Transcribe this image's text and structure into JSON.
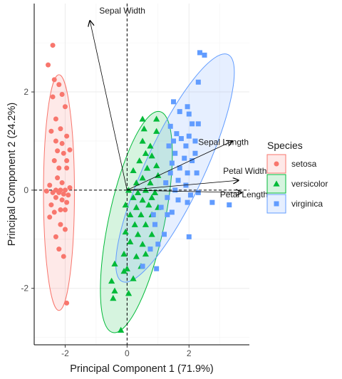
{
  "chart_data": {
    "type": "scatter",
    "xlabel": "Principal Component 1 (71.9%)",
    "ylabel": "Principal Component 2 (24.2%)",
    "xlim": [
      -3.0,
      3.95
    ],
    "ylim": [
      -3.15,
      3.8
    ],
    "xticks": [
      -2,
      0,
      2
    ],
    "yticks": [
      -2,
      0,
      2
    ],
    "grid": true,
    "legend": {
      "title": "Species",
      "position": "right"
    },
    "reference_lines": {
      "x": 0,
      "y": 0,
      "style": "dashed"
    },
    "series": [
      {
        "name": "setosa",
        "marker": "circle",
        "color": "#f8766d",
        "ellipse": {
          "cx": -2.2,
          "cy": -0.05,
          "rx": 0.5,
          "ry": 2.4,
          "angle_deg": 0
        },
        "points": [
          [
            -2.4,
            2.95
          ],
          [
            -2.55,
            2.55
          ],
          [
            -2.35,
            2.25
          ],
          [
            -2.2,
            2.15
          ],
          [
            -2.4,
            1.9
          ],
          [
            -2.1,
            1.95
          ],
          [
            -2.0,
            1.7
          ],
          [
            -2.3,
            1.45
          ],
          [
            -2.15,
            1.25
          ],
          [
            -2.45,
            1.2
          ],
          [
            -1.95,
            1.1
          ],
          [
            -2.3,
            1.0
          ],
          [
            -2.1,
            0.95
          ],
          [
            -2.25,
            0.8
          ],
          [
            -1.85,
            0.82
          ],
          [
            -2.05,
            0.75
          ],
          [
            -1.95,
            0.6
          ],
          [
            -2.35,
            0.6
          ],
          [
            -2.2,
            0.45
          ],
          [
            -1.95,
            0.45
          ],
          [
            -2.25,
            0.25
          ],
          [
            -2.1,
            0.15
          ],
          [
            -2.5,
            0.1
          ],
          [
            -2.3,
            0.0
          ],
          [
            -2.15,
            0.0
          ],
          [
            -2.0,
            0.0
          ],
          [
            -1.85,
            0.05
          ],
          [
            -2.6,
            -0.02
          ],
          [
            -2.4,
            -0.05
          ],
          [
            -2.2,
            -0.05
          ],
          [
            -2.05,
            -0.08
          ],
          [
            -1.9,
            -0.1
          ],
          [
            -2.3,
            -0.15
          ],
          [
            -2.1,
            -0.2
          ],
          [
            -1.95,
            -0.25
          ],
          [
            -2.45,
            -0.3
          ],
          [
            -2.15,
            -0.4
          ],
          [
            -2.35,
            -0.45
          ],
          [
            -2.0,
            -0.4
          ],
          [
            -2.5,
            -0.55
          ],
          [
            -2.15,
            -0.7
          ],
          [
            -2.0,
            -0.8
          ],
          [
            -2.3,
            -0.95
          ],
          [
            -2.2,
            -1.2
          ],
          [
            -2.05,
            -1.35
          ],
          [
            -1.95,
            -2.3
          ]
        ]
      },
      {
        "name": "versicolor",
        "marker": "triangle",
        "color": "#00ba38",
        "ellipse": {
          "cx": 0.3,
          "cy": -0.65,
          "rx": 0.9,
          "ry": 2.3,
          "angle_deg": 12
        },
        "points": [
          [
            0.5,
            1.45
          ],
          [
            0.95,
            1.45
          ],
          [
            0.55,
            1.25
          ],
          [
            0.95,
            1.2
          ],
          [
            0.5,
            1.0
          ],
          [
            0.75,
            0.9
          ],
          [
            0.6,
            0.75
          ],
          [
            0.8,
            0.7
          ],
          [
            0.4,
            0.6
          ],
          [
            0.95,
            0.5
          ],
          [
            0.65,
            0.45
          ],
          [
            0.2,
            0.4
          ],
          [
            0.5,
            0.25
          ],
          [
            1.0,
            0.3
          ],
          [
            0.3,
            0.15
          ],
          [
            0.75,
            0.15
          ],
          [
            0.05,
            0.0
          ],
          [
            0.35,
            -0.05
          ],
          [
            0.6,
            0.0
          ],
          [
            0.9,
            -0.05
          ],
          [
            0.2,
            -0.15
          ],
          [
            0.5,
            -0.2
          ],
          [
            0.8,
            -0.15
          ],
          [
            -0.05,
            -0.3
          ],
          [
            0.3,
            -0.35
          ],
          [
            0.7,
            -0.3
          ],
          [
            1.0,
            -0.35
          ],
          [
            0.1,
            -0.5
          ],
          [
            0.45,
            -0.5
          ],
          [
            0.8,
            -0.5
          ],
          [
            0.25,
            -0.7
          ],
          [
            0.6,
            -0.7
          ],
          [
            -0.05,
            -0.85
          ],
          [
            0.35,
            -0.9
          ],
          [
            0.8,
            -0.9
          ],
          [
            0.1,
            -1.05
          ],
          [
            0.5,
            -1.1
          ],
          [
            -0.1,
            -1.3
          ],
          [
            0.3,
            -1.35
          ],
          [
            0.6,
            -1.3
          ],
          [
            0.0,
            -1.6
          ],
          [
            -0.4,
            -1.5
          ],
          [
            0.45,
            -1.55
          ],
          [
            -0.1,
            -1.65
          ],
          [
            0.2,
            -1.8
          ],
          [
            -0.5,
            -1.85
          ],
          [
            0.05,
            -2.1
          ],
          [
            -0.4,
            -2.05
          ],
          [
            -0.45,
            -2.2
          ],
          [
            -0.2,
            -2.85
          ]
        ]
      },
      {
        "name": "virginica",
        "marker": "square",
        "color": "#619cff",
        "ellipse": {
          "cx": 1.55,
          "cy": 0.45,
          "rx": 0.95,
          "ry": 2.55,
          "angle_deg": 25
        },
        "points": [
          [
            2.35,
            2.8
          ],
          [
            2.5,
            2.75
          ],
          [
            2.3,
            2.2
          ],
          [
            1.5,
            1.8
          ],
          [
            1.95,
            1.7
          ],
          [
            1.7,
            1.6
          ],
          [
            2.0,
            1.55
          ],
          [
            1.4,
            1.3
          ],
          [
            2.1,
            1.35
          ],
          [
            2.3,
            1.35
          ],
          [
            1.6,
            1.15
          ],
          [
            2.0,
            1.1
          ],
          [
            1.5,
            1.0
          ],
          [
            1.75,
            1.05
          ],
          [
            2.2,
            1.0
          ],
          [
            1.35,
            0.9
          ],
          [
            1.9,
            0.9
          ],
          [
            2.2,
            0.75
          ],
          [
            1.55,
            0.75
          ],
          [
            1.85,
            0.65
          ],
          [
            2.1,
            0.6
          ],
          [
            1.45,
            0.55
          ],
          [
            1.7,
            0.45
          ],
          [
            1.4,
            0.35
          ],
          [
            1.95,
            0.35
          ],
          [
            2.25,
            0.35
          ],
          [
            1.65,
            0.2
          ],
          [
            1.25,
            0.15
          ],
          [
            1.9,
            0.1
          ],
          [
            1.55,
            0.0
          ],
          [
            2.3,
            -0.05
          ],
          [
            2.05,
            -0.1
          ],
          [
            1.3,
            -0.15
          ],
          [
            1.65,
            -0.2
          ],
          [
            1.95,
            -0.25
          ],
          [
            1.1,
            -0.35
          ],
          [
            1.45,
            -0.45
          ],
          [
            2.75,
            -0.25
          ],
          [
            3.3,
            -0.3
          ],
          [
            0.85,
            -0.5
          ],
          [
            1.3,
            -0.5
          ],
          [
            0.9,
            -0.7
          ],
          [
            1.2,
            -0.9
          ],
          [
            2.0,
            -0.95
          ],
          [
            1.0,
            -1.1
          ],
          [
            0.75,
            -1.2
          ],
          [
            0.5,
            -1.55
          ],
          [
            0.95,
            -1.6
          ]
        ]
      }
    ],
    "loadings": [
      {
        "name": "Sepal Width",
        "x": -1.2,
        "y": 3.45,
        "label_x": -0.9,
        "label_y": 3.6
      },
      {
        "name": "Sepal Length",
        "x": 3.4,
        "y": 1.0,
        "label_x": 2.3,
        "label_y": 0.92
      },
      {
        "name": "Petal Width",
        "x": 3.6,
        "y": 0.2,
        "label_x": 3.1,
        "label_y": 0.33
      },
      {
        "name": "Petal Length",
        "x": 3.7,
        "y": -0.05,
        "label_x": 3.0,
        "label_y": -0.15
      }
    ]
  }
}
